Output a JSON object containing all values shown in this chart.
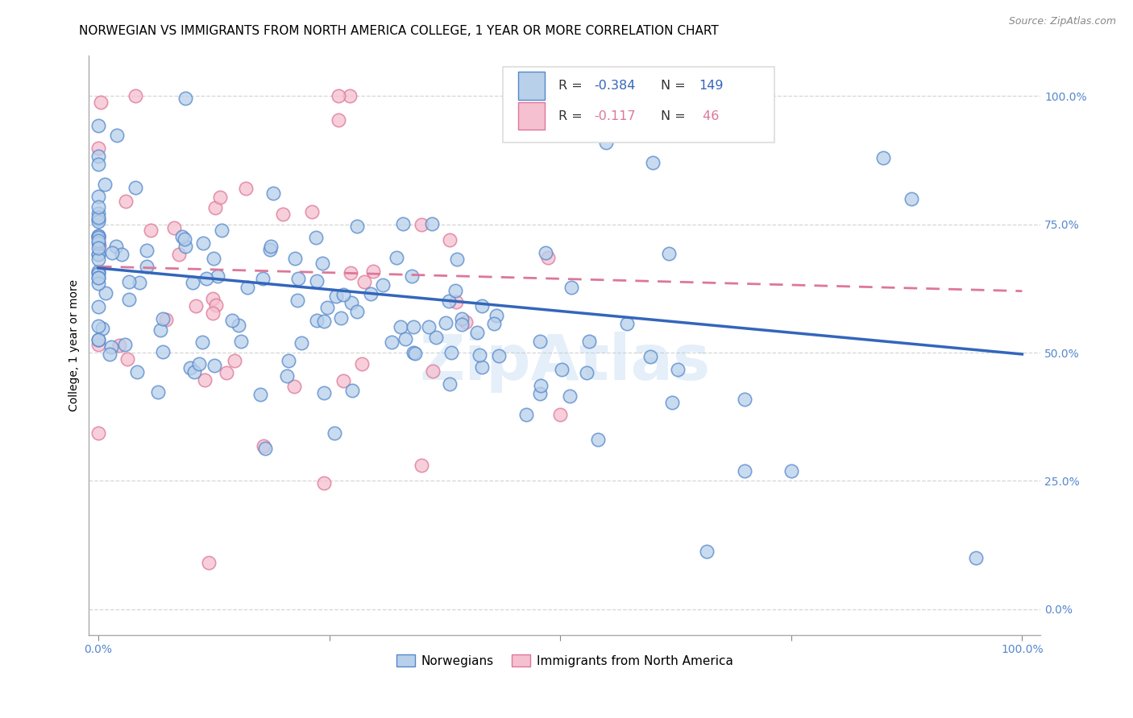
{
  "title": "NORWEGIAN VS IMMIGRANTS FROM NORTH AMERICA COLLEGE, 1 YEAR OR MORE CORRELATION CHART",
  "source": "Source: ZipAtlas.com",
  "ylabel": "College, 1 year or more",
  "legend_label_blue_series": "Norwegians",
  "legend_label_pink_series": "Immigrants from North America",
  "watermark": "ZipAtlas",
  "R_blue": -0.384,
  "N_blue": 149,
  "R_pink": -0.117,
  "N_pink": 46,
  "blue_color": "#b8d0ea",
  "blue_edge_color": "#5588cc",
  "blue_line_color": "#3366bb",
  "pink_color": "#f5c0d0",
  "pink_edge_color": "#dd7799",
  "pink_line_color": "#dd7799",
  "background_color": "#ffffff",
  "grid_color": "#cccccc",
  "tick_color": "#5588cc",
  "title_fontsize": 11,
  "axis_label_fontsize": 10,
  "tick_fontsize": 10,
  "source_fontsize": 9,
  "xlim": [
    -0.01,
    1.02
  ],
  "ylim": [
    -0.05,
    1.08
  ],
  "ytick_values": [
    0.0,
    0.25,
    0.5,
    0.75,
    1.0
  ],
  "xtick_values": [
    0.0,
    1.0
  ],
  "xtick_labels": [
    "0.0%",
    "100.0%"
  ],
  "ytick_labels": [
    "0.0%",
    "25.0%",
    "50.0%",
    "75.0%",
    "100.0%"
  ]
}
